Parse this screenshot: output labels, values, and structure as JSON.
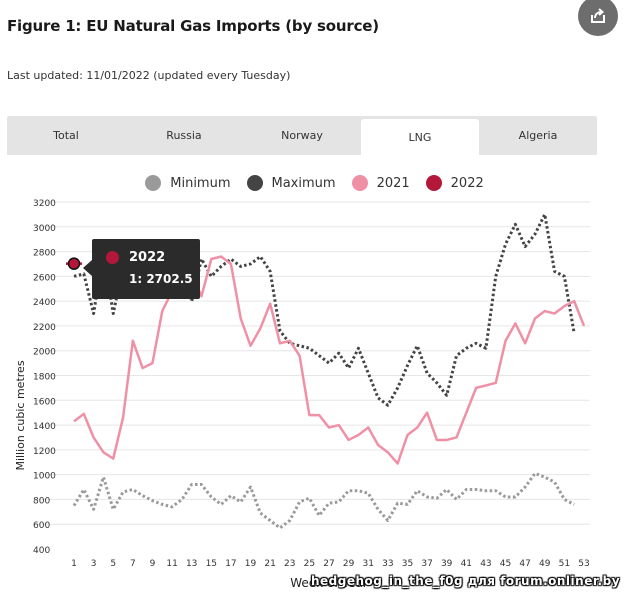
{
  "header": {
    "title": "Figure 1: EU Natural Gas Imports (by source)",
    "last_updated": "Last updated: 11/01/2022 (updated every Tuesday)"
  },
  "tabs": [
    {
      "label": "Total",
      "active": false
    },
    {
      "label": "Russia",
      "active": false
    },
    {
      "label": "Norway",
      "active": false
    },
    {
      "label": "LNG",
      "active": true
    },
    {
      "label": "Algeria",
      "active": false
    }
  ],
  "tooltip": {
    "series": "2022",
    "value": "1: 2702.5"
  },
  "watermark": "hedgehog_in_the_f0g для forum.onliner.by",
  "chart_data": {
    "type": "line",
    "xlabel": "Week of Year",
    "ylabel": "Million cubic metres",
    "xlim": [
      1,
      53
    ],
    "ylim": [
      400,
      3200
    ],
    "xticks": [
      1,
      3,
      5,
      7,
      9,
      11,
      13,
      15,
      17,
      19,
      21,
      23,
      25,
      27,
      29,
      31,
      33,
      35,
      37,
      39,
      41,
      43,
      45,
      47,
      49,
      51,
      53
    ],
    "yticks": [
      400,
      600,
      800,
      1000,
      1200,
      1400,
      1600,
      1800,
      2000,
      2200,
      2400,
      2600,
      2800,
      3000,
      3200
    ],
    "legend_position": "top-center",
    "grid": true,
    "series": [
      {
        "name": "Minimum",
        "color": "#9a9a9a",
        "style": "dotted",
        "x": [
          1,
          2,
          3,
          4,
          5,
          6,
          7,
          8,
          9,
          10,
          11,
          12,
          13,
          14,
          15,
          16,
          17,
          18,
          19,
          20,
          21,
          22,
          23,
          24,
          25,
          26,
          27,
          28,
          29,
          30,
          31,
          32,
          33,
          34,
          35,
          36,
          37,
          38,
          39,
          40,
          41,
          42,
          43,
          44,
          45,
          46,
          47,
          48,
          49,
          50,
          51,
          52
        ],
        "values": [
          750,
          880,
          720,
          980,
          720,
          860,
          880,
          830,
          790,
          760,
          740,
          800,
          920,
          920,
          820,
          760,
          830,
          780,
          900,
          690,
          630,
          570,
          630,
          780,
          810,
          670,
          770,
          780,
          870,
          870,
          850,
          720,
          630,
          770,
          760,
          870,
          820,
          810,
          880,
          800,
          880,
          880,
          870,
          870,
          820,
          820,
          900,
          1010,
          980,
          940,
          800,
          760
        ]
      },
      {
        "name": "Maximum",
        "color": "#444444",
        "style": "dotted",
        "x": [
          1,
          2,
          3,
          4,
          5,
          6,
          7,
          8,
          9,
          10,
          11,
          12,
          13,
          14,
          15,
          16,
          17,
          18,
          19,
          20,
          21,
          22,
          23,
          24,
          25,
          26,
          27,
          28,
          29,
          30,
          31,
          32,
          33,
          34,
          35,
          36,
          37,
          38,
          39,
          40,
          41,
          42,
          43,
          44,
          45,
          46,
          47,
          48,
          49,
          50,
          51,
          52
        ],
        "values": [
          2600,
          2620,
          2300,
          2800,
          2300,
          2680,
          2780,
          2720,
          2620,
          2660,
          2560,
          2660,
          2400,
          2740,
          2600,
          2680,
          2740,
          2680,
          2700,
          2760,
          2640,
          2160,
          2060,
          2040,
          2020,
          1960,
          1900,
          1980,
          1860,
          2020,
          1820,
          1620,
          1560,
          1700,
          1880,
          2040,
          1820,
          1740,
          1640,
          1960,
          2020,
          2060,
          2020,
          2600,
          2860,
          3020,
          2840,
          2940,
          3100,
          2640,
          2600,
          2140
        ]
      },
      {
        "name": "2021",
        "color": "#f090a6",
        "style": "solid",
        "x": [
          1,
          2,
          3,
          4,
          5,
          6,
          7,
          8,
          9,
          10,
          11,
          12,
          13,
          14,
          15,
          16,
          17,
          18,
          19,
          20,
          21,
          22,
          23,
          24,
          25,
          26,
          27,
          28,
          29,
          30,
          31,
          32,
          33,
          34,
          35,
          36,
          37,
          38,
          39,
          40,
          41,
          42,
          43,
          44,
          45,
          46,
          47,
          48,
          49,
          50,
          51,
          52,
          53
        ],
        "values": [
          1430,
          1490,
          1300,
          1180,
          1130,
          1460,
          2080,
          1860,
          1900,
          2320,
          2480,
          2580,
          2620,
          2440,
          2740,
          2760,
          2700,
          2260,
          2040,
          2180,
          2380,
          2060,
          2080,
          1960,
          1480,
          1480,
          1380,
          1400,
          1280,
          1320,
          1380,
          1240,
          1180,
          1090,
          1320,
          1380,
          1500,
          1280,
          1280,
          1300,
          1500,
          1700,
          1720,
          1740,
          2080,
          2220,
          2060,
          2260,
          2320,
          2300,
          2360,
          2400,
          2200
        ]
      },
      {
        "name": "2022",
        "color": "#b3183a",
        "style": "solid",
        "x": [
          1
        ],
        "values": [
          2702.5
        ]
      }
    ]
  }
}
